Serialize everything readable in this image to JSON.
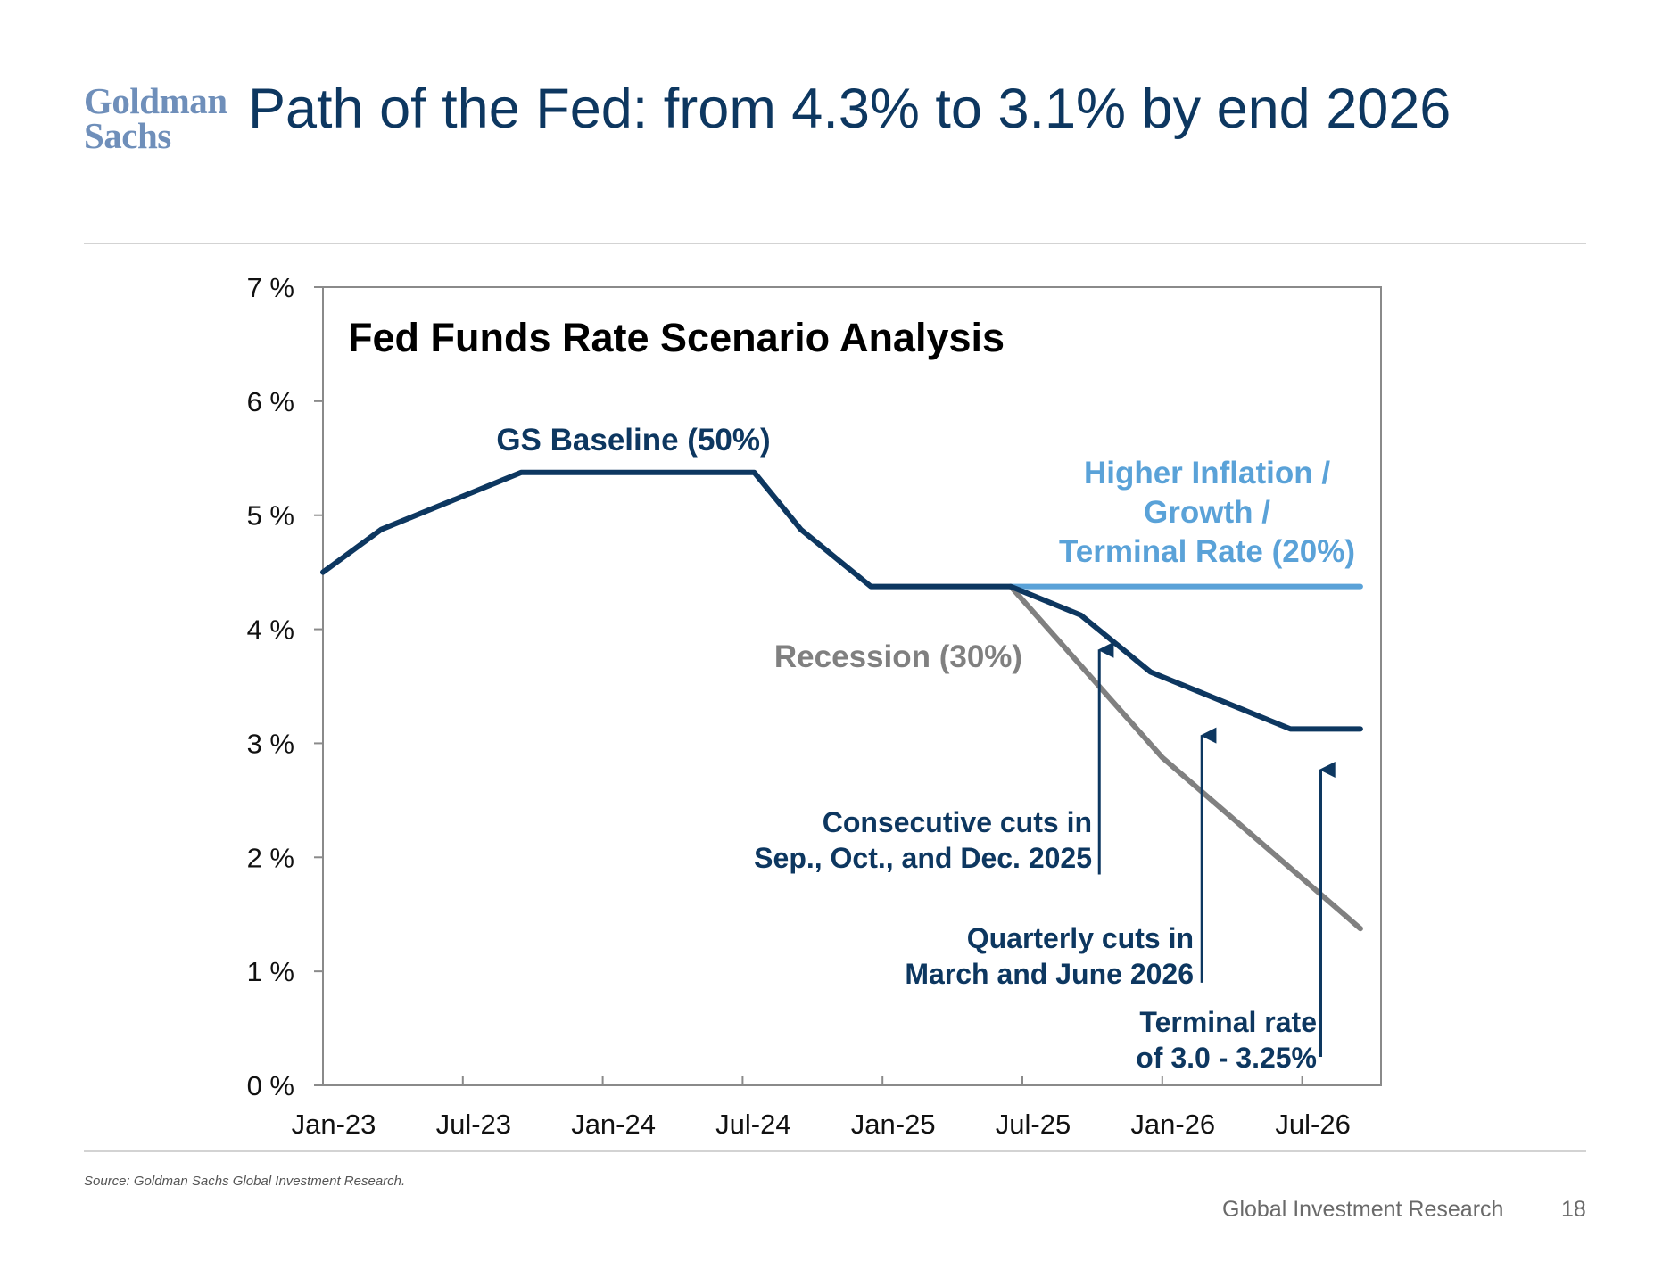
{
  "logo": {
    "line1": "Goldman",
    "line2": "Sachs"
  },
  "page_title": "Path of the Fed: from 4.3% to 3.1% by end 2026",
  "source": "Source: Goldman Sachs Global Investment Research.",
  "footer": {
    "text": "Global Investment Research",
    "page_number": "18"
  },
  "colors": {
    "baseline": "#0d3760",
    "higher": "#5aa2d8",
    "recession": "#808080",
    "axis": "#8a8a8a"
  },
  "chart_data": {
    "type": "line",
    "title": "Fed Funds Rate Scenario Analysis",
    "xlabel": "",
    "ylabel": "",
    "xlim": [
      0,
      45
    ],
    "ylim": [
      0,
      7
    ],
    "x_tick_values": [
      0,
      6,
      12,
      18,
      24,
      30,
      36,
      42
    ],
    "x_tick_labels": [
      "Jan-23",
      "Jul-23",
      "Jan-24",
      "Jul-24",
      "Jan-25",
      "Jul-25",
      "Jan-26",
      "Jul-26"
    ],
    "y_tick_values": [
      0,
      1,
      2,
      3,
      4,
      5,
      6,
      7
    ],
    "y_tick_labels": [
      "0 %",
      "1 %",
      "2 %",
      "3 %",
      "4 %",
      "5 %",
      "6 %",
      "7 %"
    ],
    "series": [
      {
        "key": "recession",
        "name": "Recession (30%)",
        "color": "#808080",
        "points": [
          [
            29.5,
            4.375
          ],
          [
            36,
            2.875
          ],
          [
            44.5,
            1.375
          ]
        ]
      },
      {
        "key": "higher",
        "name": "Higher Inflation / Growth / Terminal Rate (20%)",
        "name_lines": [
          "Higher Inflation /",
          "Growth /",
          "Terminal Rate (20%)"
        ],
        "color": "#5aa2d8",
        "points": [
          [
            29.5,
            4.375
          ],
          [
            44.5,
            4.375
          ]
        ]
      },
      {
        "key": "baseline",
        "name": "GS Baseline (50%)",
        "color": "#0d3760",
        "points": [
          [
            0,
            4.5
          ],
          [
            2.5,
            4.875
          ],
          [
            8.5,
            5.375
          ],
          [
            18.5,
            5.375
          ],
          [
            20.5,
            4.875
          ],
          [
            23.5,
            4.375
          ],
          [
            29.5,
            4.375
          ],
          [
            32.5,
            4.125
          ],
          [
            35.5,
            3.625
          ],
          [
            41.5,
            3.125
          ],
          [
            44.5,
            3.125
          ]
        ]
      }
    ],
    "annotations": [
      {
        "key": "consecutive",
        "lines": [
          "Consecutive cuts in",
          "Sep., Oct., and Dec. 2025"
        ],
        "arrow_x": 33.3,
        "arrow_from": 1.85,
        "arrow_to": 3.85
      },
      {
        "key": "quarterly",
        "lines": [
          "Quarterly cuts in",
          "March and June 2026"
        ],
        "arrow_x": 37.7,
        "arrow_from": 0.9,
        "arrow_to": 3.1
      },
      {
        "key": "terminal",
        "lines": [
          "Terminal rate",
          "of 3.0 - 3.25%"
        ],
        "arrow_x": 42.8,
        "arrow_from": 0.25,
        "arrow_to": 2.8
      }
    ]
  }
}
